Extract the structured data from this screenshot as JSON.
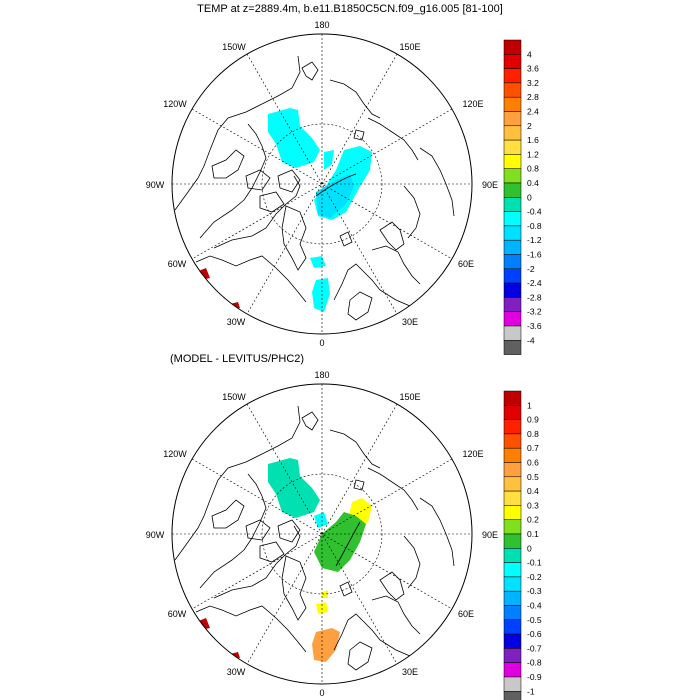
{
  "top": {
    "title": "TEMP at z=2889.4m, b.e11.B1850C5CN.f09_g16.005 [81-100]",
    "lon_labels": {
      "n": "180",
      "ne": "150E",
      "nw": "150W",
      "e1": "120E",
      "w1": "120W",
      "e2": "90E",
      "w2": "90W",
      "e3": "60E",
      "w3": "60W",
      "e4": "30E",
      "w4": "30W",
      "s": "0"
    },
    "colorbar": {
      "labels": [
        "4",
        "3.6",
        "3.2",
        "2.8",
        "2.4",
        "2",
        "1.6",
        "1.2",
        "0.8",
        "0.4",
        "0",
        "-0.4",
        "-0.8",
        "-1.2",
        "-1.6",
        "-2",
        "-2.4",
        "-2.8",
        "-3.2",
        "-3.6",
        "-4"
      ],
      "colors": [
        "#c00000",
        "#e00000",
        "#ff2000",
        "#ff5000",
        "#ff8000",
        "#ffa040",
        "#ffc040",
        "#ffe040",
        "#ffff00",
        "#80e020",
        "#30c030",
        "#00e0b0",
        "#00ffff",
        "#00e0ff",
        "#00b4ff",
        "#0080ff",
        "#0040ff",
        "#0000e0",
        "#8020c0",
        "#e000e0",
        "#c8c8c8",
        "#606060"
      ]
    }
  },
  "bottom": {
    "title": "(MODEL - LEVITUS/PHC2)",
    "lon_labels": {
      "n": "180",
      "ne": "150E",
      "nw": "150W",
      "e1": "120E",
      "w1": "120W",
      "e2": "90E",
      "w2": "90W",
      "e3": "60E",
      "w3": "60W",
      "e4": "30E",
      "w4": "30W",
      "s": "0"
    },
    "colorbar": {
      "labels": [
        "1",
        "0.9",
        "0.8",
        "0.7",
        "0.6",
        "0.5",
        "0.4",
        "0.3",
        "0.2",
        "0.1",
        "0",
        "-0.1",
        "-0.2",
        "-0.3",
        "-0.4",
        "-0.5",
        "-0.6",
        "-0.7",
        "-0.8",
        "-0.9",
        "-1"
      ],
      "colors": [
        "#c00000",
        "#e00000",
        "#ff2000",
        "#ff5000",
        "#ff8000",
        "#ffa040",
        "#ffc040",
        "#ffe040",
        "#ffff00",
        "#80e020",
        "#30c030",
        "#00e0b0",
        "#00ffff",
        "#00e0ff",
        "#00b4ff",
        "#0080ff",
        "#0040ff",
        "#0000e0",
        "#8020c0",
        "#e000e0",
        "#c8c8c8",
        "#606060"
      ]
    }
  }
}
